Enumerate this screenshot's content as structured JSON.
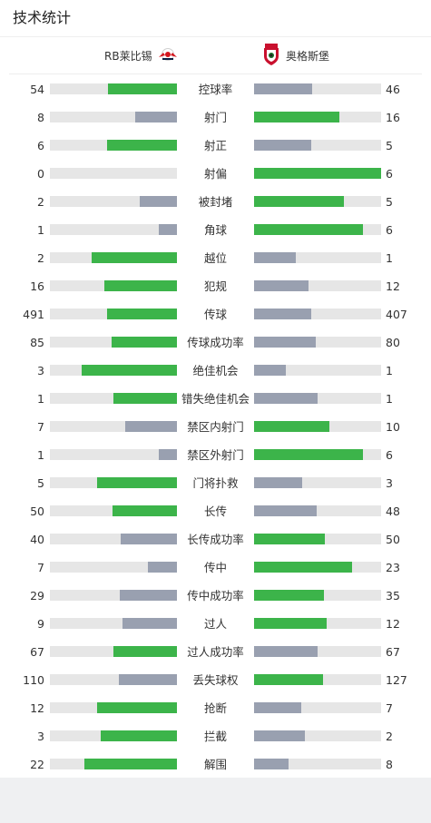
{
  "title": "技术统计",
  "home_team": {
    "name": "RB莱比锡",
    "logo": "rb-leipzig-logo"
  },
  "away_team": {
    "name": "奥格斯堡",
    "logo": "augsburg-logo"
  },
  "colors": {
    "leader": "#3cb44a",
    "trailer": "#99a0b0",
    "track": "#e6e6e6"
  },
  "stats": [
    {
      "label": "控球率",
      "home": "54",
      "away": "46",
      "home_frac": 0.54,
      "away_frac": 0.46
    },
    {
      "label": "射门",
      "home": "8",
      "away": "16",
      "home_frac": 0.33,
      "away_frac": 0.67
    },
    {
      "label": "射正",
      "home": "6",
      "away": "5",
      "home_frac": 0.55,
      "away_frac": 0.45
    },
    {
      "label": "射偏",
      "home": "0",
      "away": "6",
      "home_frac": 0.0,
      "away_frac": 1.0
    },
    {
      "label": "被封堵",
      "home": "2",
      "away": "5",
      "home_frac": 0.29,
      "away_frac": 0.71
    },
    {
      "label": "角球",
      "home": "1",
      "away": "6",
      "home_frac": 0.14,
      "away_frac": 0.86
    },
    {
      "label": "越位",
      "home": "2",
      "away": "1",
      "home_frac": 0.67,
      "away_frac": 0.33
    },
    {
      "label": "犯规",
      "home": "16",
      "away": "12",
      "home_frac": 0.57,
      "away_frac": 0.43
    },
    {
      "label": "传球",
      "home": "491",
      "away": "407",
      "home_frac": 0.55,
      "away_frac": 0.45
    },
    {
      "label": "传球成功率",
      "home": "85",
      "away": "80",
      "home_frac": 0.515,
      "away_frac": 0.485
    },
    {
      "label": "绝佳机会",
      "home": "3",
      "away": "1",
      "home_frac": 0.75,
      "away_frac": 0.25
    },
    {
      "label": "错失绝佳机会",
      "home": "1",
      "away": "1",
      "home_frac": 0.5,
      "away_frac": 0.5
    },
    {
      "label": "禁区内射门",
      "home": "7",
      "away": "10",
      "home_frac": 0.41,
      "away_frac": 0.59
    },
    {
      "label": "禁区外射门",
      "home": "1",
      "away": "6",
      "home_frac": 0.14,
      "away_frac": 0.86
    },
    {
      "label": "门将扑救",
      "home": "5",
      "away": "3",
      "home_frac": 0.625,
      "away_frac": 0.375
    },
    {
      "label": "长传",
      "home": "50",
      "away": "48",
      "home_frac": 0.51,
      "away_frac": 0.49
    },
    {
      "label": "长传成功率",
      "home": "40",
      "away": "50",
      "home_frac": 0.44,
      "away_frac": 0.56
    },
    {
      "label": "传中",
      "home": "7",
      "away": "23",
      "home_frac": 0.23,
      "away_frac": 0.77
    },
    {
      "label": "传中成功率",
      "home": "29",
      "away": "35",
      "home_frac": 0.45,
      "away_frac": 0.55
    },
    {
      "label": "过人",
      "home": "9",
      "away": "12",
      "home_frac": 0.43,
      "away_frac": 0.57
    },
    {
      "label": "过人成功率",
      "home": "67",
      "away": "67",
      "home_frac": 0.5,
      "away_frac": 0.5
    },
    {
      "label": "丢失球权",
      "home": "110",
      "away": "127",
      "home_frac": 0.46,
      "away_frac": 0.54
    },
    {
      "label": "抢断",
      "home": "12",
      "away": "7",
      "home_frac": 0.63,
      "away_frac": 0.37
    },
    {
      "label": "拦截",
      "home": "3",
      "away": "2",
      "home_frac": 0.6,
      "away_frac": 0.4
    },
    {
      "label": "解围",
      "home": "22",
      "away": "8",
      "home_frac": 0.73,
      "away_frac": 0.27
    }
  ]
}
